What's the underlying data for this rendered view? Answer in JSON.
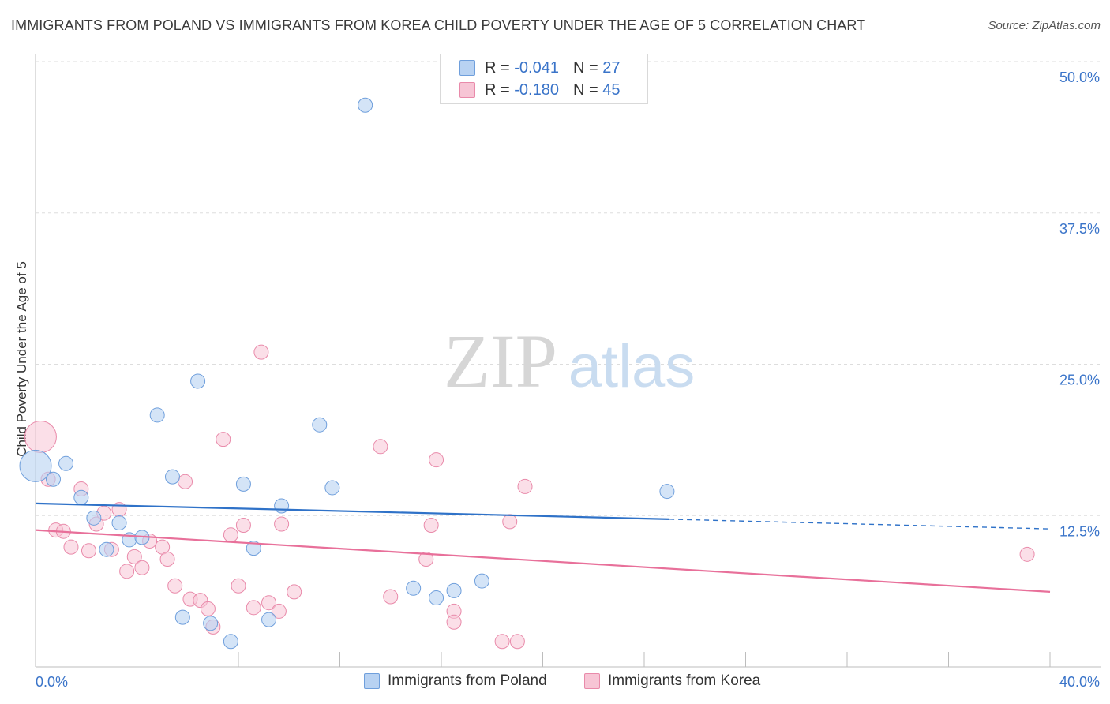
{
  "title": "IMMIGRANTS FROM POLAND VS IMMIGRANTS FROM KOREA CHILD POVERTY UNDER THE AGE OF 5 CORRELATION CHART",
  "source": "Source: ZipAtlas.com",
  "watermark": {
    "zip": "ZIP",
    "atlas": "atlas"
  },
  "legend": {
    "poland": {
      "r_label": "R = ",
      "r_value": "-0.041",
      "n_label": "N = ",
      "n_value": "27"
    },
    "korea": {
      "r_label": "R = ",
      "r_value": "-0.180",
      "n_label": "N = ",
      "n_value": "45"
    }
  },
  "colors": {
    "poland_fill": "#b8d2f2",
    "poland_stroke": "#6f9fdc",
    "poland_line": "#2f72c8",
    "korea_fill": "#f7c5d5",
    "korea_stroke": "#e98aaa",
    "korea_line": "#e8709a",
    "axis_label": "#3a74c9",
    "grid": "#dddddd"
  },
  "chart_data": {
    "type": "scatter",
    "title": "IMMIGRANTS FROM POLAND VS IMMIGRANTS FROM KOREA CHILD POVERTY UNDER THE AGE OF 5 CORRELATION CHART",
    "xlabel": "",
    "ylabel": "Child Poverty Under the Age of 5",
    "xlim": [
      0,
      40
    ],
    "ylim": [
      0,
      50
    ],
    "x_tick_labels": [
      "0.0%",
      "40.0%"
    ],
    "y_ticks": [
      12.5,
      25.0,
      37.5,
      50.0
    ],
    "y_tick_labels": [
      "12.5%",
      "25.0%",
      "37.5%",
      "50.0%"
    ],
    "grid": true,
    "legend_position": "top-center",
    "series": [
      {
        "name": "Immigrants from Poland",
        "points": [
          [
            0.0,
            16.6
          ],
          [
            0.7,
            15.5
          ],
          [
            1.2,
            16.8
          ],
          [
            1.8,
            14.0
          ],
          [
            2.3,
            12.3
          ],
          [
            2.8,
            9.7
          ],
          [
            3.3,
            11.9
          ],
          [
            3.7,
            10.5
          ],
          [
            4.2,
            10.7
          ],
          [
            4.8,
            20.8
          ],
          [
            5.4,
            15.7
          ],
          [
            5.8,
            4.1
          ],
          [
            6.4,
            23.6
          ],
          [
            6.9,
            3.6
          ],
          [
            7.7,
            2.1
          ],
          [
            8.2,
            15.1
          ],
          [
            8.6,
            9.8
          ],
          [
            9.2,
            3.9
          ],
          [
            9.7,
            13.3
          ],
          [
            11.2,
            20.0
          ],
          [
            11.7,
            14.8
          ],
          [
            13.0,
            46.4
          ],
          [
            14.9,
            6.5
          ],
          [
            15.8,
            5.7
          ],
          [
            16.5,
            6.3
          ],
          [
            17.6,
            7.1
          ],
          [
            24.9,
            14.5
          ]
        ],
        "trend": {
          "x": [
            0,
            25.0
          ],
          "y": [
            13.5,
            12.2
          ]
        },
        "trend_ext": {
          "x": [
            25.0,
            40
          ],
          "y": [
            12.2,
            11.4
          ]
        }
      },
      {
        "name": "Immigrants from Korea",
        "points": [
          [
            0.2,
            19.0
          ],
          [
            0.5,
            15.5
          ],
          [
            0.8,
            11.3
          ],
          [
            1.1,
            11.2
          ],
          [
            1.4,
            9.9
          ],
          [
            1.8,
            14.7
          ],
          [
            2.1,
            9.6
          ],
          [
            2.4,
            11.8
          ],
          [
            2.7,
            12.7
          ],
          [
            3.0,
            9.7
          ],
          [
            3.3,
            13.0
          ],
          [
            3.6,
            7.9
          ],
          [
            3.9,
            9.1
          ],
          [
            4.2,
            8.2
          ],
          [
            4.5,
            10.4
          ],
          [
            5.0,
            9.9
          ],
          [
            5.2,
            8.9
          ],
          [
            5.5,
            6.7
          ],
          [
            5.9,
            15.3
          ],
          [
            6.1,
            5.6
          ],
          [
            6.5,
            5.5
          ],
          [
            6.8,
            4.8
          ],
          [
            7.0,
            3.3
          ],
          [
            7.4,
            18.8
          ],
          [
            7.7,
            10.9
          ],
          [
            8.0,
            6.7
          ],
          [
            8.2,
            11.7
          ],
          [
            8.6,
            4.9
          ],
          [
            8.9,
            26.0
          ],
          [
            9.2,
            5.3
          ],
          [
            9.6,
            4.6
          ],
          [
            9.7,
            11.8
          ],
          [
            10.2,
            6.2
          ],
          [
            13.6,
            18.2
          ],
          [
            14.0,
            5.8
          ],
          [
            15.4,
            8.9
          ],
          [
            15.6,
            11.7
          ],
          [
            15.8,
            17.1
          ],
          [
            16.5,
            4.6
          ],
          [
            16.5,
            3.7
          ],
          [
            18.4,
            2.1
          ],
          [
            18.7,
            12.0
          ],
          [
            19.0,
            2.1
          ],
          [
            19.3,
            14.9
          ],
          [
            39.1,
            9.3
          ]
        ],
        "trend": {
          "x": [
            0,
            40
          ],
          "y": [
            11.3,
            6.2
          ]
        }
      }
    ]
  },
  "bottom_legend": {
    "poland": "Immigrants from Poland",
    "korea": "Immigrants from Korea"
  }
}
